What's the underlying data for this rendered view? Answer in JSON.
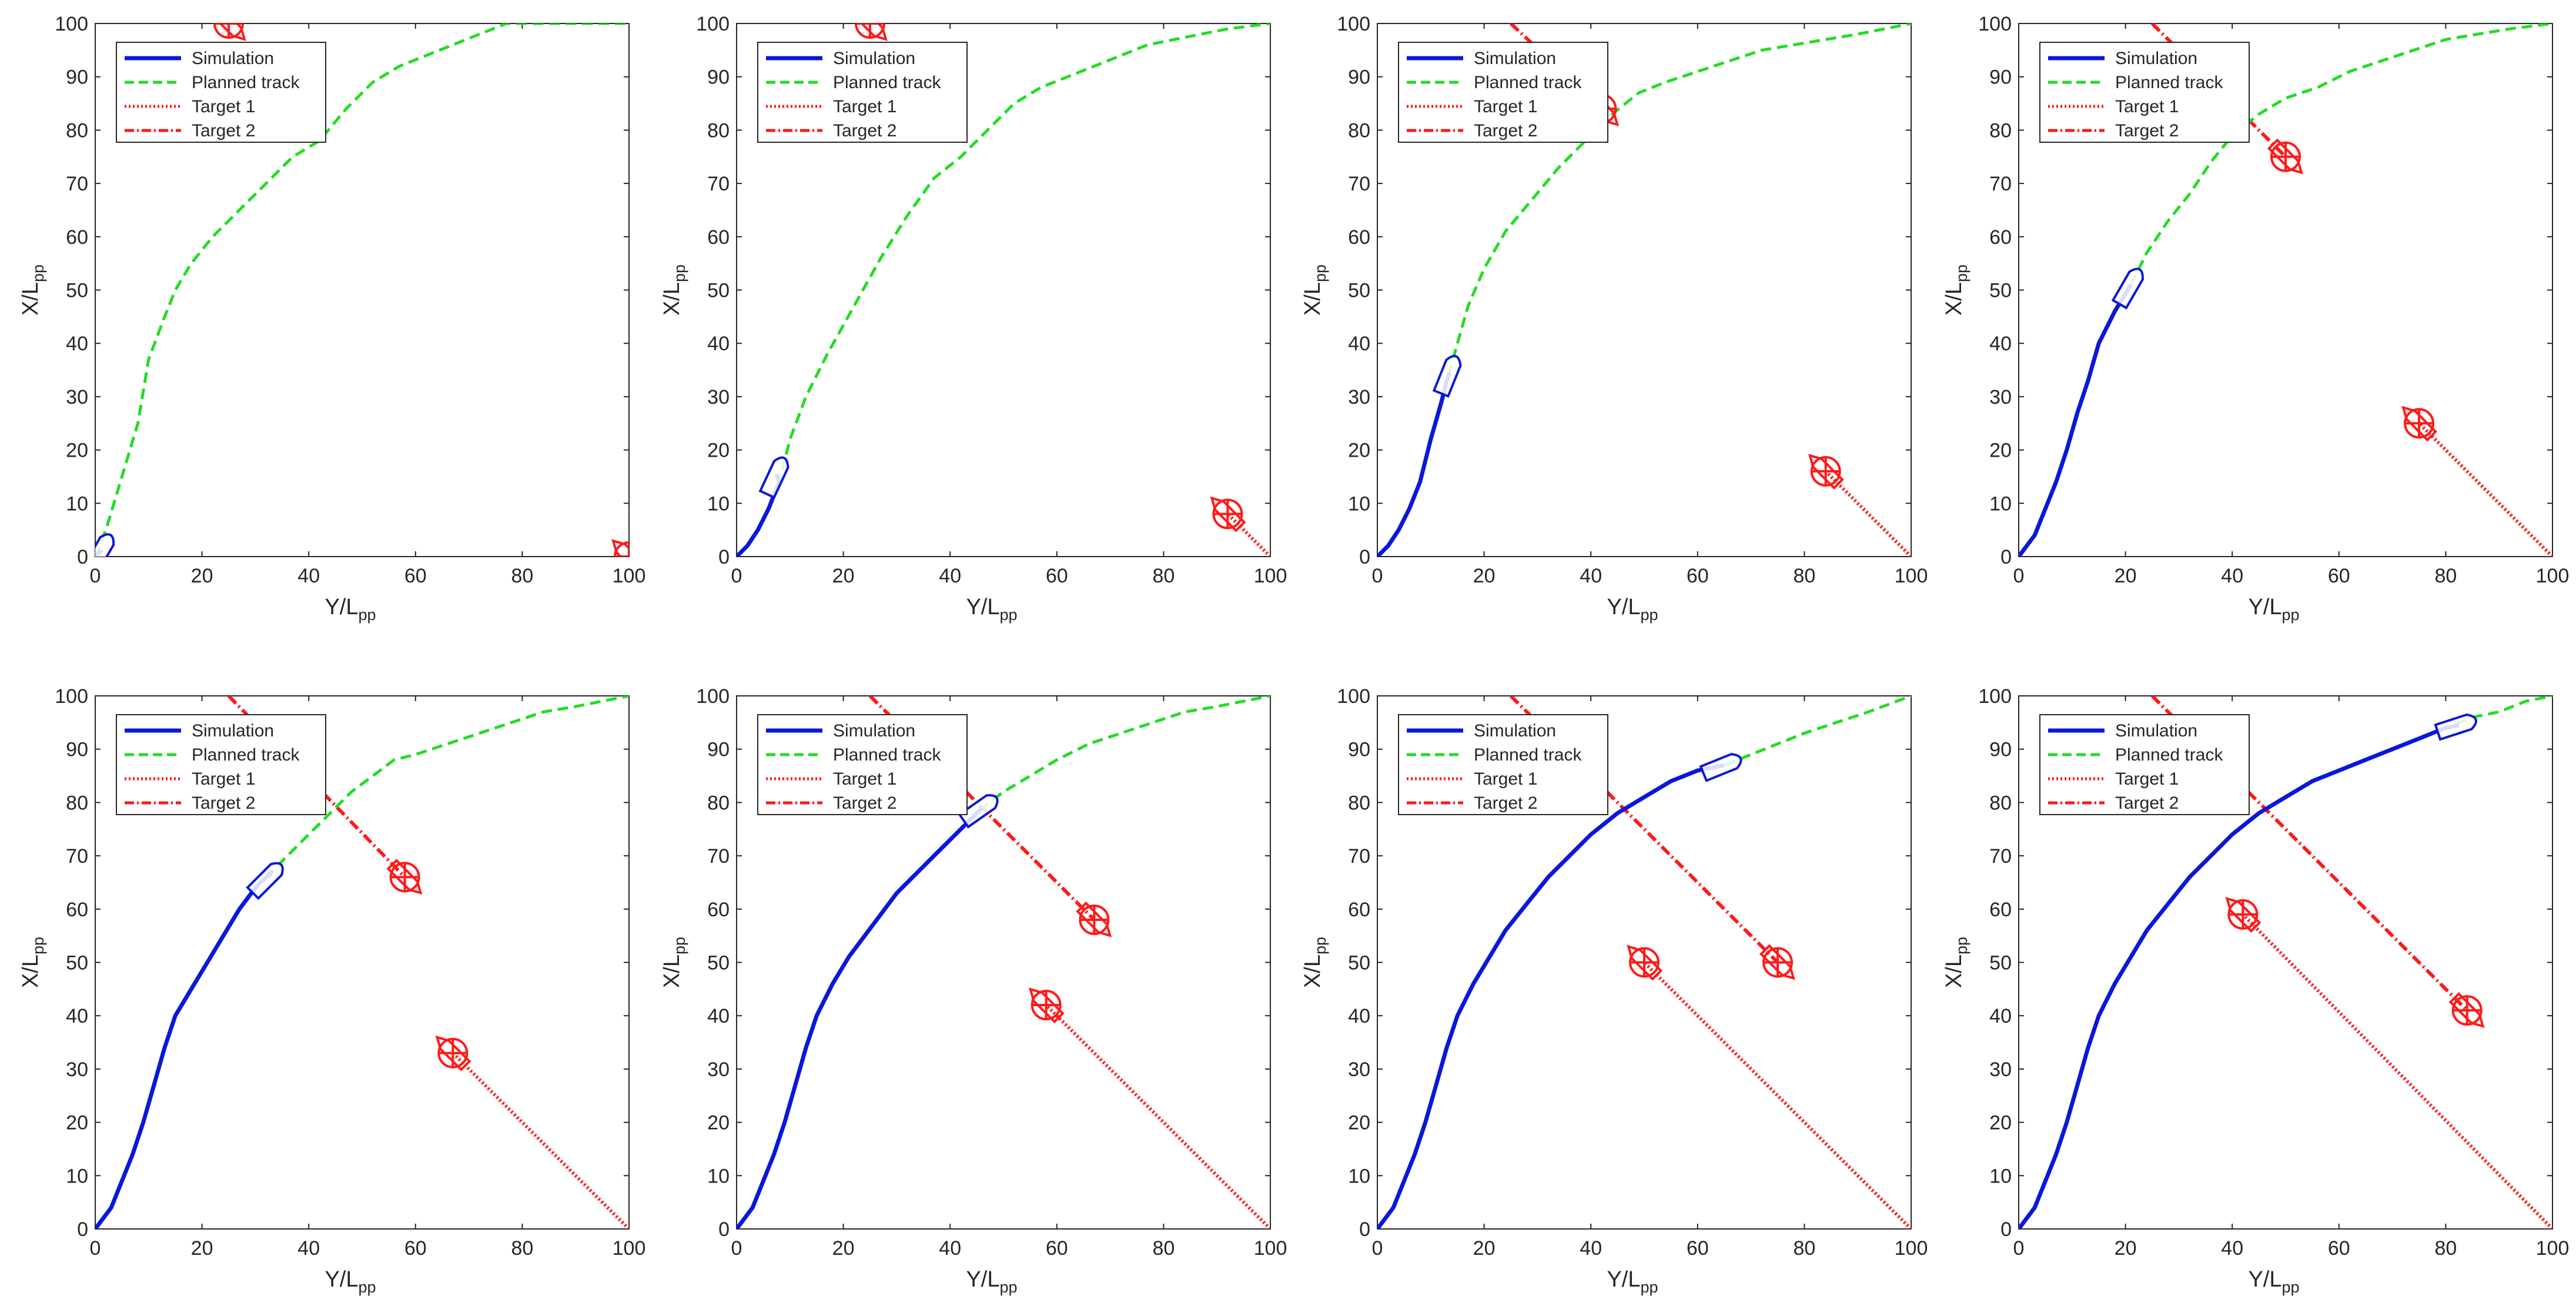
{
  "figure": {
    "rows": 2,
    "cols": 4,
    "xlabel_main": "Y/L",
    "xlabel_sub": "pp",
    "ylabel_main": "X/L",
    "ylabel_sub": "pp",
    "xlim": [
      0,
      100
    ],
    "ylim": [
      0,
      100
    ],
    "xticks": [
      0,
      20,
      40,
      60,
      80,
      100
    ],
    "yticks": [
      0,
      10,
      20,
      30,
      40,
      50,
      60,
      70,
      80,
      90,
      100
    ],
    "legend": [
      "Simulation",
      "Planned track",
      "Target 1",
      "Target 2"
    ],
    "colors": {
      "simulation": "#0a18d8",
      "planned": "#22dd22",
      "target": "#ff1a1a",
      "axis": "#262626"
    }
  },
  "chart_data": [
    {
      "type": "line",
      "panel": 1,
      "simulation_end": [
        1.2,
        1.2
      ],
      "ship_heading_deg": 60,
      "target1": {
        "x": 100,
        "y": 0
      },
      "target2": {
        "x": 25,
        "y": 100
      },
      "planned_track": [
        [
          0,
          0
        ],
        [
          2,
          5
        ],
        [
          5,
          15
        ],
        [
          8,
          25
        ],
        [
          10,
          37
        ],
        [
          13,
          45
        ],
        [
          15,
          50
        ],
        [
          18,
          55
        ],
        [
          22,
          60
        ],
        [
          27,
          65
        ],
        [
          32,
          70
        ],
        [
          37,
          75
        ],
        [
          42,
          78
        ],
        [
          47,
          84
        ],
        [
          52,
          89
        ],
        [
          57,
          92
        ],
        [
          62,
          94
        ],
        [
          67,
          96
        ],
        [
          72,
          98
        ],
        [
          77,
          100
        ],
        [
          82,
          100
        ],
        [
          100,
          100
        ]
      ]
    },
    {
      "type": "line",
      "panel": 2,
      "simulation_end": [
        7.5,
        15.5
      ],
      "ship_heading_deg": 65,
      "target1": {
        "x": 92,
        "y": 8
      },
      "target2": {
        "x": 25,
        "y": 100
      },
      "planned_track": [
        [
          0,
          0
        ],
        [
          2,
          2
        ],
        [
          4,
          5
        ],
        [
          6,
          9
        ],
        [
          8,
          14
        ],
        [
          10,
          22
        ],
        [
          13,
          30
        ],
        [
          17,
          38
        ],
        [
          22,
          47
        ],
        [
          27,
          56
        ],
        [
          32,
          64
        ],
        [
          37,
          71
        ],
        [
          42,
          75
        ],
        [
          47,
          80
        ],
        [
          52,
          85
        ],
        [
          57,
          88
        ],
        [
          62,
          90
        ],
        [
          67,
          92
        ],
        [
          72,
          94
        ],
        [
          77,
          96
        ],
        [
          82,
          97
        ],
        [
          87,
          98
        ],
        [
          92,
          99
        ],
        [
          100,
          100
        ]
      ]
    },
    {
      "type": "line",
      "panel": 3,
      "simulation_end": [
        13.5,
        34.5
      ],
      "ship_heading_deg": 68,
      "target1": {
        "x": 84,
        "y": 16
      },
      "target2": {
        "x": 42,
        "y": 84
      },
      "planned_track": [
        [
          0,
          0
        ],
        [
          2,
          2
        ],
        [
          4,
          5
        ],
        [
          6,
          9
        ],
        [
          8,
          14
        ],
        [
          10,
          22
        ],
        [
          12,
          29
        ],
        [
          13,
          33
        ],
        [
          15,
          40
        ],
        [
          17,
          47
        ],
        [
          20,
          54
        ],
        [
          24,
          61
        ],
        [
          29,
          67
        ],
        [
          34,
          73
        ],
        [
          39,
          78
        ],
        [
          44,
          83
        ],
        [
          49,
          87
        ],
        [
          54,
          89
        ],
        [
          60,
          91
        ],
        [
          66,
          93
        ],
        [
          72,
          95
        ],
        [
          78,
          96
        ],
        [
          84,
          97
        ],
        [
          90,
          98
        ],
        [
          100,
          100
        ]
      ]
    },
    {
      "type": "line",
      "panel": 4,
      "simulation_end": [
        21,
        51
      ],
      "ship_heading_deg": 60,
      "target1": {
        "x": 75,
        "y": 25
      },
      "target2": {
        "x": 50,
        "y": 75
      },
      "planned_track": [
        [
          0,
          0
        ],
        [
          3,
          4
        ],
        [
          5,
          9
        ],
        [
          7,
          14
        ],
        [
          9,
          20
        ],
        [
          11,
          27
        ],
        [
          13,
          33
        ],
        [
          15,
          40
        ],
        [
          18,
          46
        ],
        [
          21,
          51
        ],
        [
          24,
          57
        ],
        [
          28,
          63
        ],
        [
          32,
          68
        ],
        [
          36,
          74
        ],
        [
          40,
          79
        ],
        [
          45,
          83
        ],
        [
          50,
          86
        ],
        [
          56,
          88
        ],
        [
          62,
          91
        ],
        [
          68,
          93
        ],
        [
          74,
          95
        ],
        [
          80,
          97
        ],
        [
          86,
          98
        ],
        [
          92,
          99
        ],
        [
          100,
          100
        ]
      ]
    },
    {
      "type": "line",
      "panel": 5,
      "simulation_end": [
        32.5,
        66
      ],
      "ship_heading_deg": 45,
      "target1": {
        "x": 67,
        "y": 33
      },
      "target2": {
        "x": 58,
        "y": 66
      },
      "planned_track": [
        [
          0,
          0
        ],
        [
          3,
          4
        ],
        [
          5,
          9
        ],
        [
          7,
          14
        ],
        [
          9,
          20
        ],
        [
          11,
          27
        ],
        [
          13,
          34
        ],
        [
          15,
          40
        ],
        [
          18,
          45
        ],
        [
          21,
          50
        ],
        [
          24,
          55
        ],
        [
          27,
          60
        ],
        [
          30,
          64
        ],
        [
          33,
          67
        ],
        [
          36,
          70
        ],
        [
          39,
          73
        ],
        [
          42,
          76
        ],
        [
          45,
          79
        ],
        [
          48,
          82
        ],
        [
          52,
          85
        ],
        [
          56,
          88
        ],
        [
          60,
          89
        ],
        [
          66,
          91
        ],
        [
          72,
          93
        ],
        [
          78,
          95
        ],
        [
          84,
          97
        ],
        [
          90,
          98
        ],
        [
          100,
          100
        ]
      ]
    },
    {
      "type": "line",
      "panel": 6,
      "simulation_end": [
        46,
        79
      ],
      "ship_heading_deg": 35,
      "target1": {
        "x": 58,
        "y": 42
      },
      "target2": {
        "x": 67,
        "y": 58
      },
      "planned_track": [
        [
          0,
          0
        ],
        [
          3,
          4
        ],
        [
          5,
          9
        ],
        [
          7,
          14
        ],
        [
          9,
          20
        ],
        [
          11,
          27
        ],
        [
          13,
          34
        ],
        [
          15,
          40
        ],
        [
          18,
          46
        ],
        [
          21,
          51
        ],
        [
          24,
          55
        ],
        [
          27,
          59
        ],
        [
          30,
          63
        ],
        [
          34,
          67
        ],
        [
          38,
          71
        ],
        [
          42,
          75
        ],
        [
          46,
          79
        ],
        [
          50,
          82
        ],
        [
          55,
          85
        ],
        [
          60,
          88
        ],
        [
          66,
          91
        ],
        [
          72,
          93
        ],
        [
          78,
          95
        ],
        [
          84,
          97
        ],
        [
          90,
          98
        ],
        [
          100,
          100
        ]
      ]
    },
    {
      "type": "line",
      "panel": 7,
      "simulation_end": [
        65,
        87
      ],
      "ship_heading_deg": 22,
      "target1": {
        "x": 50,
        "y": 50
      },
      "target2": {
        "x": 75,
        "y": 50
      },
      "planned_track": [
        [
          0,
          0
        ],
        [
          3,
          4
        ],
        [
          5,
          9
        ],
        [
          7,
          14
        ],
        [
          9,
          20
        ],
        [
          11,
          27
        ],
        [
          13,
          34
        ],
        [
          15,
          40
        ],
        [
          18,
          46
        ],
        [
          21,
          51
        ],
        [
          24,
          56
        ],
        [
          28,
          61
        ],
        [
          32,
          66
        ],
        [
          36,
          70
        ],
        [
          40,
          74
        ],
        [
          45,
          78
        ],
        [
          50,
          81
        ],
        [
          55,
          84
        ],
        [
          60,
          86
        ],
        [
          65,
          87
        ],
        [
          70,
          89
        ],
        [
          75,
          91
        ],
        [
          80,
          93
        ],
        [
          86,
          95
        ],
        [
          92,
          97
        ],
        [
          100,
          100
        ]
      ]
    },
    {
      "type": "line",
      "panel": 8,
      "simulation_end": [
        82.5,
        94.5
      ],
      "ship_heading_deg": 18,
      "target1": {
        "x": 42,
        "y": 59
      },
      "target2": {
        "x": 84,
        "y": 41
      },
      "planned_track": [
        [
          0,
          0
        ],
        [
          3,
          4
        ],
        [
          5,
          9
        ],
        [
          7,
          14
        ],
        [
          9,
          20
        ],
        [
          11,
          27
        ],
        [
          13,
          34
        ],
        [
          15,
          40
        ],
        [
          18,
          46
        ],
        [
          21,
          51
        ],
        [
          24,
          56
        ],
        [
          28,
          61
        ],
        [
          32,
          66
        ],
        [
          36,
          70
        ],
        [
          40,
          74
        ],
        [
          45,
          78
        ],
        [
          50,
          81
        ],
        [
          55,
          84
        ],
        [
          60,
          86
        ],
        [
          65,
          88
        ],
        [
          70,
          90
        ],
        [
          75,
          92
        ],
        [
          80,
          94
        ],
        [
          85,
          96
        ],
        [
          90,
          97
        ],
        [
          95,
          99
        ],
        [
          100,
          100
        ]
      ]
    }
  ]
}
